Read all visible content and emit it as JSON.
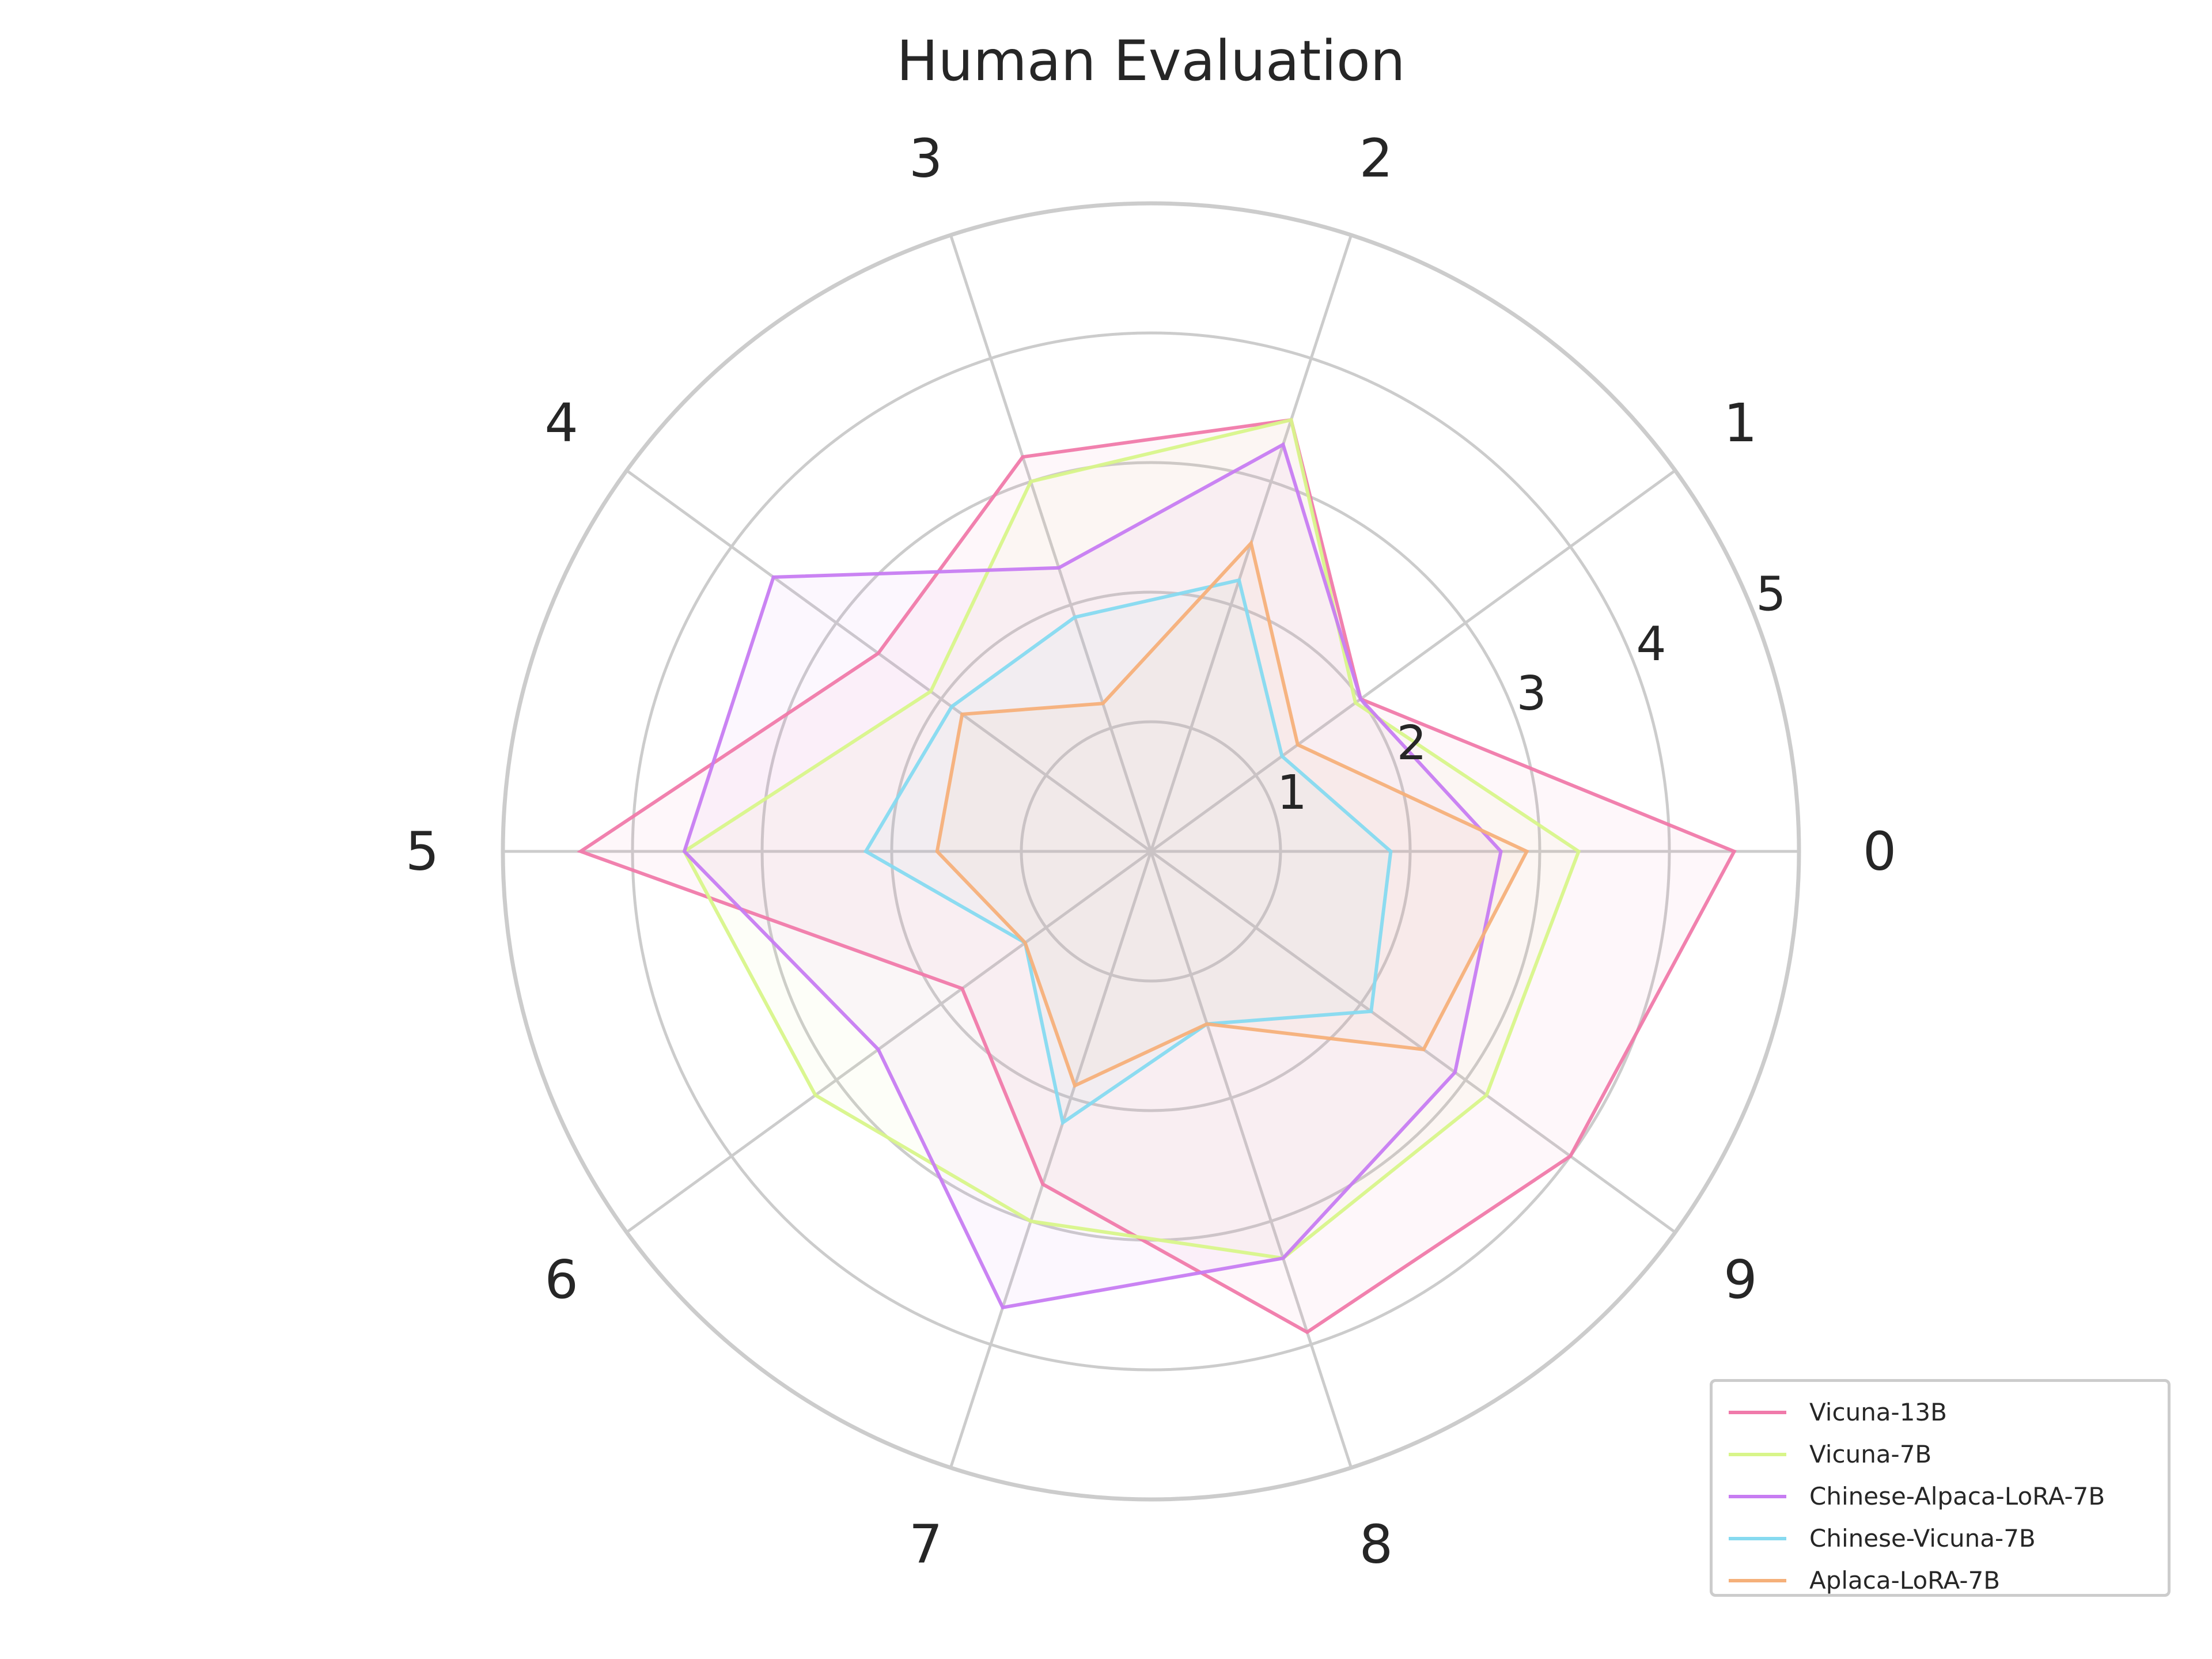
{
  "chart_data": {
    "type": "radar",
    "title": "Human Evaluation",
    "categories": [
      "0",
      "1",
      "2",
      "3",
      "4",
      "5",
      "6",
      "7",
      "8",
      "9"
    ],
    "radial_ticks": [
      "1",
      "2",
      "3",
      "4",
      "5"
    ],
    "rlim": [
      0,
      5
    ],
    "grid": true,
    "legend_position": "bottom-right",
    "series": [
      {
        "name": "Vicuna-13B",
        "color": "#f07aaa",
        "values": [
          4.5,
          2.0,
          3.5,
          3.2,
          2.6,
          4.4,
          1.8,
          2.7,
          3.9,
          4.0
        ]
      },
      {
        "name": "Vicuna-7B",
        "color": "#d8f58a",
        "values": [
          3.3,
          1.95,
          3.5,
          3.0,
          2.1,
          3.6,
          3.2,
          3.0,
          3.3,
          3.2
        ]
      },
      {
        "name": "Chinese-Alpaca-LoRA-7B",
        "color": "#c77cf2",
        "values": [
          2.7,
          2.0,
          3.3,
          2.3,
          3.6,
          3.6,
          2.6,
          3.7,
          3.3,
          2.9
        ]
      },
      {
        "name": "Chinese-Vicuna-7B",
        "color": "#86daf0",
        "values": [
          1.85,
          1.25,
          2.2,
          1.9,
          1.9,
          2.2,
          1.2,
          2.2,
          1.4,
          2.1
        ]
      },
      {
        "name": "Aplaca-LoRA-7B",
        "color": "#f5b07a",
        "values": [
          2.9,
          1.4,
          2.5,
          1.2,
          1.8,
          1.65,
          1.2,
          1.9,
          1.4,
          2.6
        ]
      }
    ]
  }
}
